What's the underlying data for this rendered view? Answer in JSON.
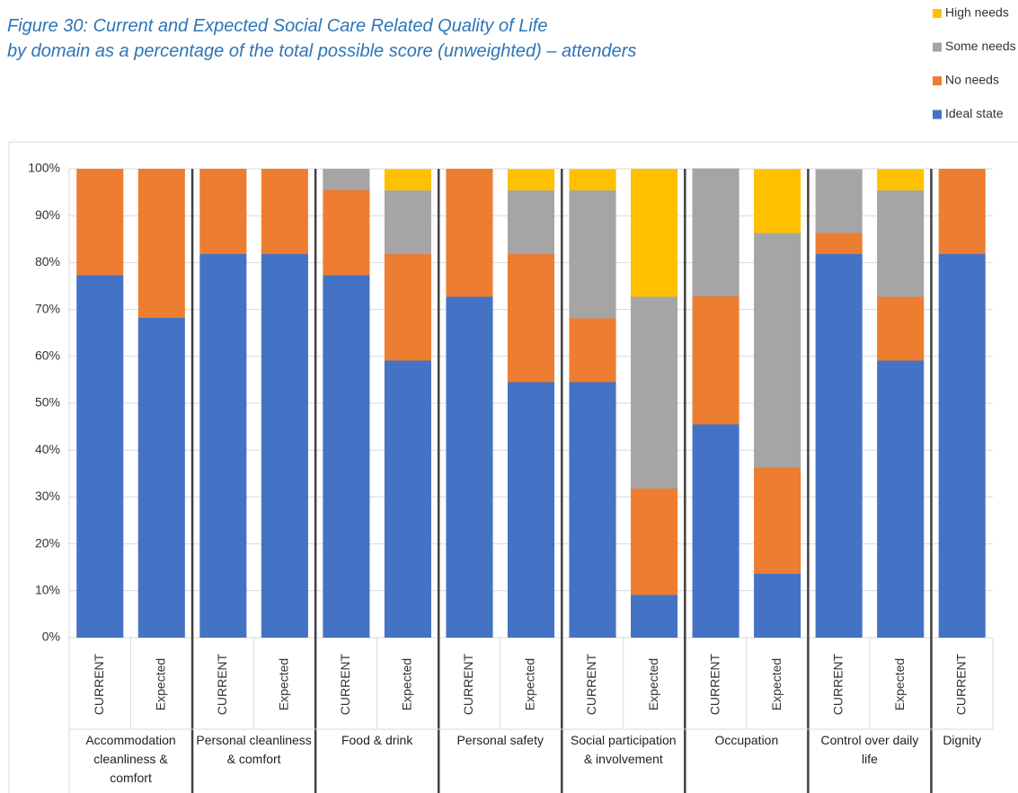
{
  "chart_data": {
    "type": "stacked_bar",
    "title": "Figure 30: Current and Expected Social Care Related Quality of Life",
    "subtitle": "by domain as a percentage of the total possible score (unweighted) – attenders",
    "groups": [
      {
        "name": "Accommodation cleanliness & comfort",
        "categories": [
          "CURRENT",
          "Expected"
        ]
      },
      {
        "name": "Personal cleanliness & comfort",
        "categories": [
          "CURRENT",
          "Expected"
        ]
      },
      {
        "name": "Food & drink",
        "categories": [
          "CURRENT",
          "Expected"
        ]
      },
      {
        "name": "Personal safety",
        "categories": [
          "CURRENT",
          "Expected"
        ]
      },
      {
        "name": "Social participation & involvement",
        "categories": [
          "CURRENT",
          "Expected"
        ]
      },
      {
        "name": "Occupation",
        "categories": [
          "CURRENT",
          "Expected"
        ]
      },
      {
        "name": "Control over daily life",
        "categories": [
          "CURRENT",
          "Expected"
        ]
      },
      {
        "name": "Dignity",
        "categories": [
          "CURRENT"
        ]
      }
    ],
    "series": [
      {
        "name": "Ideal state",
        "color": "#4472c4",
        "values": [
          77.3,
          68.2,
          81.8,
          81.8,
          77.3,
          59.1,
          72.7,
          54.5,
          54.5,
          9.1,
          45.5,
          13.6,
          81.8,
          59.1,
          81.8
        ]
      },
      {
        "name": "No needs",
        "color": "#ed7d31",
        "values": [
          22.7,
          31.8,
          18.2,
          18.2,
          18.2,
          22.7,
          27.3,
          27.3,
          13.6,
          22.7,
          27.3,
          22.7,
          4.5,
          13.6,
          18.2
        ]
      },
      {
        "name": "Some needs",
        "color": "#a5a5a5",
        "values": [
          0,
          0,
          0,
          0,
          4.5,
          13.6,
          0,
          13.6,
          27.3,
          40.9,
          27.3,
          50,
          13.6,
          22.7,
          0
        ]
      },
      {
        "name": "High needs",
        "color": "#ffc000",
        "values": [
          0,
          0,
          0,
          0,
          0,
          4.5,
          0,
          4.5,
          4.5,
          27.3,
          0,
          13.6,
          0,
          4.5,
          0
        ]
      }
    ],
    "ylim": [
      0,
      100
    ],
    "yticks": [
      {
        "value": 0,
        "label": "0%"
      },
      {
        "value": 10,
        "label": "10%"
      },
      {
        "value": 20,
        "label": "20%"
      },
      {
        "value": 30,
        "label": "30%"
      },
      {
        "value": 40,
        "label": "40%"
      },
      {
        "value": 50,
        "label": "50%"
      },
      {
        "value": 60,
        "label": "60%"
      },
      {
        "value": 70,
        "label": "70%"
      },
      {
        "value": 80,
        "label": "80%"
      },
      {
        "value": 90,
        "label": "90%"
      },
      {
        "value": 100,
        "label": "100%"
      }
    ],
    "grid": true
  }
}
